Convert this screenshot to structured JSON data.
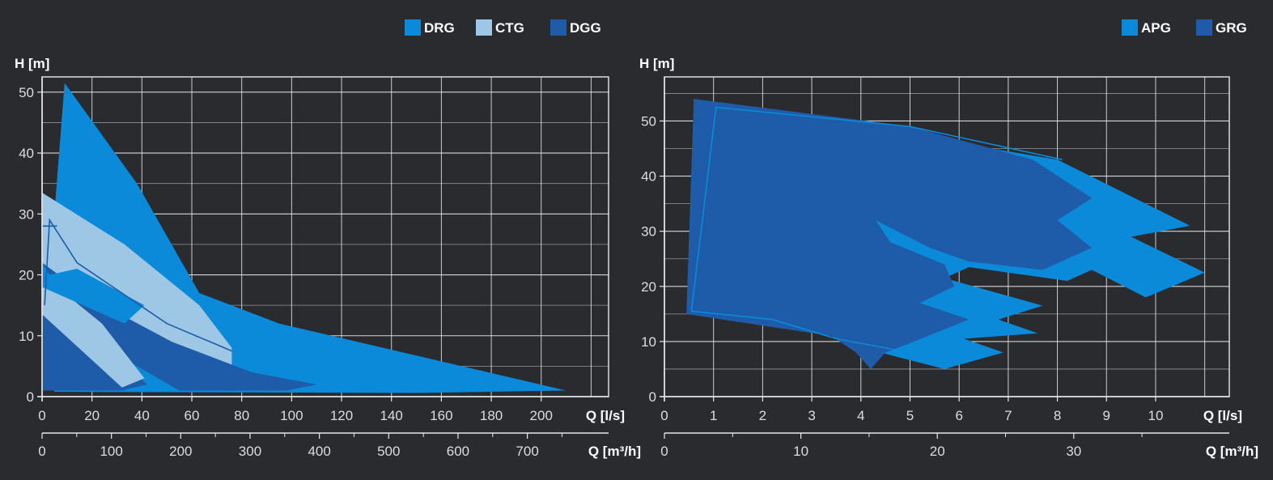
{
  "colors": {
    "background": "#292b2f",
    "grid": "#e8e8e8",
    "text": "#ffffff",
    "tick_text": "#dcdcdc",
    "light_blue": "#0a8ad8",
    "pale_blue": "#9ec7e6",
    "dark_blue": "#1e5caa"
  },
  "chart_data": [
    {
      "type": "area",
      "title": "",
      "ylabel": "H [m]",
      "xlabel": "Q [l/s]",
      "xlabel2": "Q [m³/h]",
      "xlim": [
        0,
        227
      ],
      "ylim": [
        0,
        52.5
      ],
      "xticks": [
        0,
        20,
        40,
        60,
        80,
        100,
        120,
        140,
        160,
        180,
        200
      ],
      "yticks": [
        0,
        10,
        20,
        30,
        40,
        50
      ],
      "x2ticks": [
        0,
        100,
        200,
        300,
        400,
        500,
        600,
        700
      ],
      "grid": true,
      "legend_position": "top-right",
      "legend": [
        {
          "name": "DRG",
          "color": "#0a8ad8"
        },
        {
          "name": "CTG",
          "color": "#9ec7e6"
        },
        {
          "name": "DGG",
          "color": "#1e5caa"
        }
      ],
      "series": [
        {
          "name": "DRG",
          "color": "#0a8ad8",
          "points": [
            [
              0,
              22
            ],
            [
              3,
              20
            ],
            [
              9,
              51.5
            ],
            [
              38,
              35
            ],
            [
              63,
              17
            ],
            [
              95,
              12
            ],
            [
              210,
              1
            ],
            [
              150,
              0.6
            ],
            [
              5,
              0.8
            ],
            [
              0,
              9
            ]
          ]
        },
        {
          "name": "CTG",
          "color": "#9ec7e6",
          "points": [
            [
              0,
              33.5
            ],
            [
              33,
              25
            ],
            [
              63,
              15
            ],
            [
              76,
              8
            ],
            [
              76,
              3
            ],
            [
              54,
              1.8
            ],
            [
              0,
              16
            ]
          ]
        },
        {
          "name": "DGG",
          "color": "#1e5caa",
          "points": [
            [
              0,
              22
            ],
            [
              20,
              16
            ],
            [
              52,
              9
            ],
            [
              84,
              4
            ],
            [
              110,
              2
            ],
            [
              98,
              1
            ],
            [
              55,
              1
            ],
            [
              0,
              14
            ]
          ]
        },
        {
          "name": "DGG",
          "color": "#1e5caa",
          "points": [
            [
              0,
              14
            ],
            [
              25,
              9
            ],
            [
              42,
              2
            ],
            [
              32,
              1
            ],
            [
              0,
              1
            ]
          ]
        },
        {
          "name": "CTG",
          "color": "#9ec7e6",
          "points": [
            [
              0,
              20
            ],
            [
              24,
              12
            ],
            [
              41,
              3
            ],
            [
              32,
              1.5
            ],
            [
              0,
              13.5
            ]
          ]
        },
        {
          "name": "DRG",
          "color": "#0a8ad8",
          "points": [
            [
              0,
              22
            ],
            [
              3,
              20
            ],
            [
              14,
              21
            ],
            [
              41,
              15
            ],
            [
              33,
              12
            ],
            [
              0,
              18
            ]
          ]
        }
      ],
      "outlines": [
        [
          [
            1,
            15
          ],
          [
            3,
            29
          ],
          [
            14,
            22
          ],
          [
            50,
            12
          ],
          [
            76,
            7.5
          ]
        ],
        [
          [
            0,
            28
          ],
          [
            6,
            28
          ]
        ]
      ]
    },
    {
      "type": "area",
      "title": "",
      "ylabel": "H [m]",
      "xlabel": "Q [l/s]",
      "xlabel2": "Q [m³/h]",
      "xlim": [
        0,
        11.5
      ],
      "ylim": [
        0,
        58
      ],
      "xticks": [
        0,
        1,
        2,
        3,
        4,
        5,
        6,
        7,
        8,
        9,
        10
      ],
      "yticks": [
        0,
        10,
        20,
        30,
        40,
        50
      ],
      "x2ticks": [
        0,
        10,
        20,
        30
      ],
      "grid": true,
      "legend_position": "top-right",
      "legend": [
        {
          "name": "APG",
          "color": "#0a8ad8"
        },
        {
          "name": "GRG",
          "color": "#1e5caa"
        }
      ],
      "series": [
        {
          "name": "APG",
          "color": "#0a8ad8",
          "points": [
            [
              0.6,
              54
            ],
            [
              8.0,
              43
            ],
            [
              10.7,
              31
            ],
            [
              9.5,
              29
            ],
            [
              11.0,
              22.5
            ],
            [
              9.8,
              18
            ],
            [
              8.7,
              23
            ],
            [
              8.2,
              21
            ],
            [
              6.2,
              23.5
            ],
            [
              5.7,
              21.5
            ],
            [
              7.7,
              16.5
            ],
            [
              6.8,
              14
            ],
            [
              7.6,
              11.5
            ],
            [
              6.1,
              10.5
            ],
            [
              6.9,
              8
            ],
            [
              5.7,
              5
            ],
            [
              4.4,
              8
            ],
            [
              3.8,
              10.5
            ],
            [
              0.45,
              15
            ]
          ]
        },
        {
          "name": "GRG",
          "color": "#1e5caa",
          "points": [
            [
              0.6,
              54
            ],
            [
              5.0,
              49
            ],
            [
              7.5,
              43
            ],
            [
              8.7,
              36
            ],
            [
              8.0,
              32
            ],
            [
              8.7,
              27
            ],
            [
              7.7,
              23
            ],
            [
              6.2,
              24.5
            ],
            [
              5.4,
              27
            ],
            [
              4.3,
              32
            ],
            [
              4.6,
              28
            ],
            [
              5.7,
              24
            ],
            [
              5.9,
              20
            ],
            [
              5.2,
              17
            ],
            [
              6.2,
              14
            ],
            [
              5.5,
              11.5
            ],
            [
              4.8,
              9
            ],
            [
              4.5,
              8
            ],
            [
              4.2,
              5
            ],
            [
              3.9,
              8
            ],
            [
              3.4,
              11
            ],
            [
              0.45,
              15
            ]
          ]
        }
      ],
      "outlines": [
        [
          [
            0.55,
            15.5
          ],
          [
            1.05,
            52.5
          ],
          [
            5,
            49
          ],
          [
            8.1,
            43
          ]
        ],
        [
          [
            0.55,
            15.5
          ],
          [
            2.2,
            14
          ],
          [
            3.5,
            10.5
          ],
          [
            4.7,
            8.5
          ]
        ]
      ]
    }
  ]
}
